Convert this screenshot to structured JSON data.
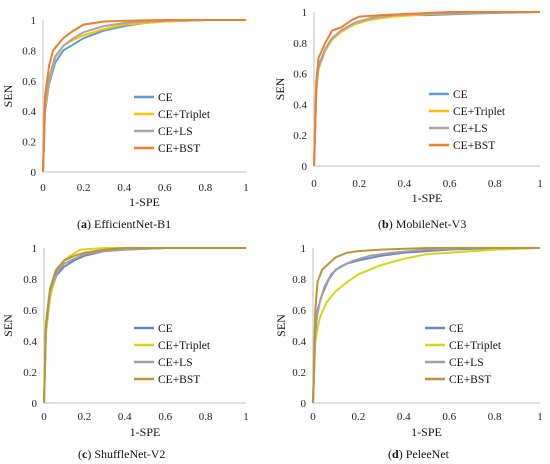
{
  "colors": {
    "CE": "#5b9bd5",
    "CE+Triplet": "#ffc000",
    "CE+LS": "#a5a5a5",
    "CE+BST": "#ed7d31",
    "CE_c": "#7083c9",
    "CE+Triplet_c": "#d4d41c",
    "CE+LS_c": "#a0a0a0",
    "CE+BST_c": "#b8953a"
  },
  "chart_data": [
    {
      "type": "line",
      "panel_letter": "a",
      "panel_name": "EfficientNet-B1",
      "xlabel": "1-SPE",
      "ylabel": "SEN",
      "xlim": [
        0,
        1
      ],
      "ylim": [
        0,
        1
      ],
      "xticks": [
        "0",
        "0.2",
        "0.4",
        "0.6",
        "0.8",
        "1"
      ],
      "yticks": [
        "0",
        "0.2",
        "0.4",
        "0.6",
        "0.8",
        "1"
      ],
      "legend_position": "right",
      "series": [
        {
          "name": "CE",
          "color_key": "CE",
          "x": [
            0,
            0.01,
            0.03,
            0.06,
            0.1,
            0.15,
            0.2,
            0.3,
            0.4,
            0.5,
            0.6,
            0.8,
            1.0
          ],
          "y": [
            0,
            0.4,
            0.58,
            0.72,
            0.8,
            0.84,
            0.88,
            0.93,
            0.96,
            0.98,
            0.99,
            1.0,
            1.0
          ]
        },
        {
          "name": "CE+Triplet",
          "color_key": "CE+Triplet",
          "x": [
            0,
            0.01,
            0.03,
            0.06,
            0.1,
            0.15,
            0.2,
            0.3,
            0.4,
            0.5,
            0.6,
            0.8,
            1.0
          ],
          "y": [
            0,
            0.42,
            0.6,
            0.75,
            0.83,
            0.87,
            0.9,
            0.94,
            0.97,
            0.98,
            0.99,
            1.0,
            1.0
          ]
        },
        {
          "name": "CE+LS",
          "color_key": "CE+LS",
          "x": [
            0,
            0.01,
            0.03,
            0.06,
            0.1,
            0.15,
            0.2,
            0.3,
            0.4,
            0.5,
            0.6,
            0.8,
            1.0
          ],
          "y": [
            0,
            0.45,
            0.62,
            0.76,
            0.83,
            0.88,
            0.92,
            0.96,
            0.98,
            0.99,
            0.995,
            1.0,
            1.0
          ]
        },
        {
          "name": "CE+BST",
          "color_key": "CE+BST",
          "x": [
            0,
            0.01,
            0.03,
            0.05,
            0.1,
            0.15,
            0.2,
            0.3,
            0.4,
            0.6,
            1.0
          ],
          "y": [
            0,
            0.5,
            0.7,
            0.8,
            0.88,
            0.93,
            0.97,
            0.99,
            0.995,
            1.0,
            1.0
          ]
        }
      ]
    },
    {
      "type": "line",
      "panel_letter": "b",
      "panel_name": "MobileNet-V3",
      "xlabel": "1-SPE",
      "ylabel": "SEN",
      "xlim": [
        0,
        1
      ],
      "ylim": [
        0,
        1
      ],
      "xticks": [
        "0",
        "0.2",
        "0.4",
        "0.6",
        "0.8",
        "1"
      ],
      "yticks": [
        "0",
        "0.2",
        "0.4",
        "0.6",
        "0.8",
        "1"
      ],
      "legend_position": "right",
      "series": [
        {
          "name": "CE",
          "color_key": "CE",
          "x": [
            0,
            0.01,
            0.02,
            0.05,
            0.08,
            0.12,
            0.18,
            0.25,
            0.35,
            0.5,
            0.7,
            1.0
          ],
          "y": [
            0,
            0.5,
            0.65,
            0.76,
            0.83,
            0.88,
            0.93,
            0.96,
            0.98,
            0.98,
            0.99,
            1.0
          ]
        },
        {
          "name": "CE+Triplet",
          "color_key": "CE+Triplet",
          "x": [
            0,
            0.01,
            0.02,
            0.05,
            0.08,
            0.12,
            0.18,
            0.25,
            0.35,
            0.5,
            0.7,
            1.0
          ],
          "y": [
            0,
            0.48,
            0.63,
            0.75,
            0.82,
            0.87,
            0.92,
            0.95,
            0.97,
            0.985,
            0.995,
            1.0
          ]
        },
        {
          "name": "CE+LS",
          "color_key": "CE+LS",
          "x": [
            0,
            0.01,
            0.02,
            0.05,
            0.08,
            0.12,
            0.18,
            0.25,
            0.35,
            0.5,
            0.7,
            1.0
          ],
          "y": [
            0,
            0.5,
            0.64,
            0.76,
            0.83,
            0.88,
            0.93,
            0.96,
            0.98,
            0.99,
            0.995,
            1.0
          ]
        },
        {
          "name": "CE+BST",
          "color_key": "CE+BST",
          "x": [
            0,
            0.01,
            0.02,
            0.05,
            0.08,
            0.12,
            0.17,
            0.2,
            0.3,
            0.45,
            0.6,
            1.0
          ],
          "y": [
            0,
            0.55,
            0.7,
            0.8,
            0.88,
            0.9,
            0.95,
            0.97,
            0.98,
            0.99,
            1.0,
            1.0
          ]
        }
      ]
    },
    {
      "type": "line",
      "panel_letter": "c",
      "panel_name": "ShuffleNet-V2",
      "xlabel": "1-SPE",
      "ylabel": "SEN",
      "xlim": [
        0,
        1
      ],
      "ylim": [
        0,
        1
      ],
      "xticks": [
        "0",
        "0.2",
        "0.4",
        "0.6",
        "0.8",
        "1"
      ],
      "yticks": [
        "0",
        "0.2",
        "0.4",
        "0.6",
        "0.8",
        "1"
      ],
      "legend_position": "right",
      "series": [
        {
          "name": "CE",
          "color_key": "CE_c",
          "x": [
            0,
            0.01,
            0.03,
            0.06,
            0.1,
            0.15,
            0.2,
            0.3,
            0.4,
            0.6,
            1.0
          ],
          "y": [
            0,
            0.5,
            0.7,
            0.82,
            0.88,
            0.92,
            0.95,
            0.98,
            0.99,
            1.0,
            1.0
          ]
        },
        {
          "name": "CE+Triplet",
          "color_key": "CE+Triplet_c",
          "x": [
            0,
            0.01,
            0.03,
            0.06,
            0.1,
            0.13,
            0.18,
            0.3,
            0.5,
            1.0
          ],
          "y": [
            0,
            0.45,
            0.68,
            0.84,
            0.92,
            0.95,
            0.99,
            1.0,
            1.0,
            1.0
          ]
        },
        {
          "name": "CE+LS",
          "color_key": "CE+LS_c",
          "x": [
            0,
            0.01,
            0.03,
            0.06,
            0.1,
            0.15,
            0.2,
            0.3,
            0.4,
            0.6,
            1.0
          ],
          "y": [
            0,
            0.5,
            0.72,
            0.84,
            0.9,
            0.93,
            0.96,
            0.98,
            0.99,
            1.0,
            1.0
          ]
        },
        {
          "name": "CE+BST",
          "color_key": "CE+BST_c",
          "x": [
            0,
            0.01,
            0.03,
            0.06,
            0.1,
            0.15,
            0.2,
            0.3,
            0.4,
            0.6,
            1.0
          ],
          "y": [
            0,
            0.52,
            0.74,
            0.86,
            0.92,
            0.95,
            0.97,
            0.99,
            1.0,
            1.0,
            1.0
          ]
        }
      ]
    },
    {
      "type": "line",
      "panel_letter": "d",
      "panel_name": "PeleeNet",
      "xlabel": "1-SPE",
      "ylabel": "SEN",
      "xlim": [
        0,
        1
      ],
      "ylim": [
        0,
        1
      ],
      "xticks": [
        "0",
        "0.2",
        "0.4",
        "0.6",
        "0.8",
        "1"
      ],
      "yticks": [
        "0",
        "0.2",
        "0.4",
        "0.6",
        "0.8",
        "1"
      ],
      "legend_position": "right",
      "series": [
        {
          "name": "CE",
          "color_key": "CE_c",
          "x": [
            0,
            0.01,
            0.02,
            0.04,
            0.07,
            0.1,
            0.15,
            0.2,
            0.3,
            0.4,
            0.6,
            0.8,
            1.0
          ],
          "y": [
            0,
            0.45,
            0.6,
            0.7,
            0.8,
            0.86,
            0.9,
            0.92,
            0.95,
            0.97,
            0.99,
            1.0,
            1.0
          ]
        },
        {
          "name": "CE+Triplet",
          "color_key": "CE+Triplet_c",
          "x": [
            0,
            0.01,
            0.03,
            0.06,
            0.1,
            0.15,
            0.2,
            0.3,
            0.4,
            0.5,
            0.6,
            0.8,
            1.0
          ],
          "y": [
            0,
            0.4,
            0.55,
            0.65,
            0.72,
            0.78,
            0.83,
            0.89,
            0.93,
            0.96,
            0.97,
            0.99,
            1.0
          ]
        },
        {
          "name": "CE+LS",
          "color_key": "CE+LS_c",
          "x": [
            0,
            0.01,
            0.03,
            0.05,
            0.08,
            0.12,
            0.18,
            0.25,
            0.35,
            0.5,
            0.7,
            1.0
          ],
          "y": [
            0,
            0.5,
            0.65,
            0.75,
            0.83,
            0.88,
            0.92,
            0.95,
            0.97,
            0.99,
            1.0,
            1.0
          ]
        },
        {
          "name": "CE+BST",
          "color_key": "CE+BST_c",
          "x": [
            0,
            0.01,
            0.02,
            0.04,
            0.07,
            0.1,
            0.15,
            0.2,
            0.3,
            0.5,
            1.0
          ],
          "y": [
            0,
            0.6,
            0.78,
            0.86,
            0.9,
            0.94,
            0.97,
            0.98,
            0.99,
            1.0,
            1.0
          ]
        }
      ]
    }
  ]
}
